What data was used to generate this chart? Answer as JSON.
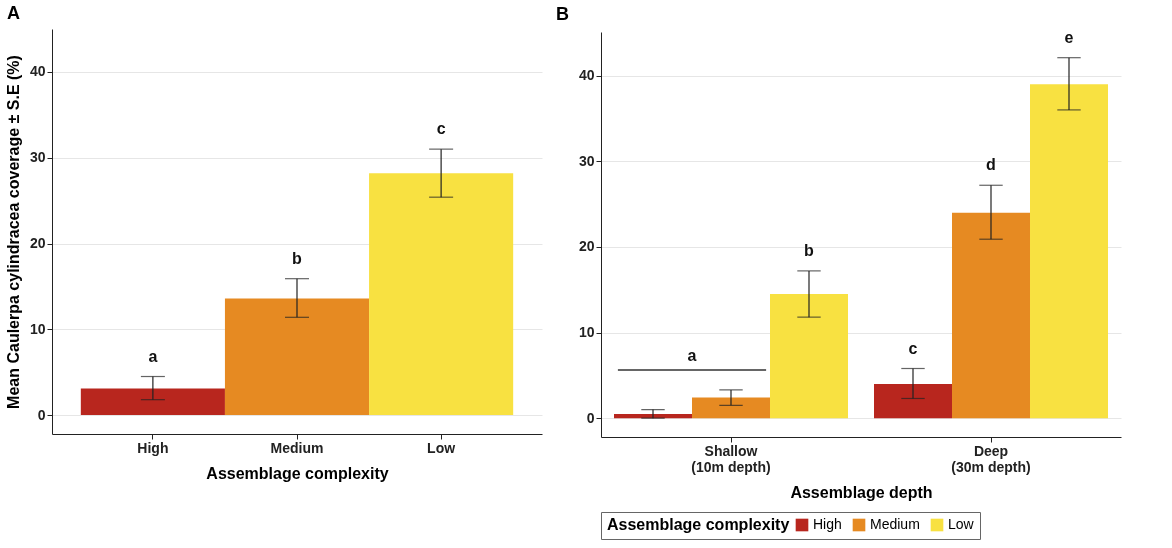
{
  "chart_data": [
    {
      "type": "bar",
      "title": "A",
      "xlabel": "Assemblage complexity",
      "ylabel": "Mean Caulerpa cylindracea coverage ± S.E (%)",
      "categories": [
        "High",
        "Medium",
        "Low"
      ],
      "values": [
        3.1,
        13.6,
        28.2
      ],
      "colors": [
        "#b8261e",
        "#e68a22",
        "#f8e141"
      ],
      "errors": [
        [
          1.8,
          4.5
        ],
        [
          11.4,
          15.9
        ],
        [
          25.4,
          31.0
        ]
      ],
      "ylim": [
        -2.2,
        45
      ],
      "yticks": [
        0,
        10,
        20,
        30,
        40
      ],
      "grid": "y",
      "annotations": [
        "a",
        "b",
        "c"
      ]
    },
    {
      "type": "bar",
      "title": "B",
      "xlabel": "Assemblage depth",
      "legend_title": "Assemblage complexity",
      "legend": "bottom",
      "categories": [
        "Shallow\n(10m depth)",
        "Deep\n(30m depth)"
      ],
      "ylim": [
        -2.2,
        45.1
      ],
      "yticks": [
        0,
        10,
        20,
        30,
        40
      ],
      "grid": "y",
      "series": [
        {
          "name": "High",
          "color": "#b8261e",
          "values": [
            0.5,
            4.0
          ],
          "errors": [
            [
              0.0,
              1.0
            ],
            [
              2.3,
              5.8
            ]
          ]
        },
        {
          "name": "Medium",
          "color": "#e68a22",
          "values": [
            2.4,
            24.0
          ],
          "errors": [
            [
              1.5,
              3.3
            ],
            [
              20.9,
              27.2
            ]
          ]
        },
        {
          "name": "Low",
          "color": "#f8e141",
          "values": [
            14.5,
            39.0
          ],
          "errors": [
            [
              11.8,
              17.2
            ],
            [
              36.0,
              42.1
            ]
          ]
        }
      ],
      "annotations": [
        "a",
        "b",
        "c",
        "d",
        "e"
      ]
    }
  ]
}
